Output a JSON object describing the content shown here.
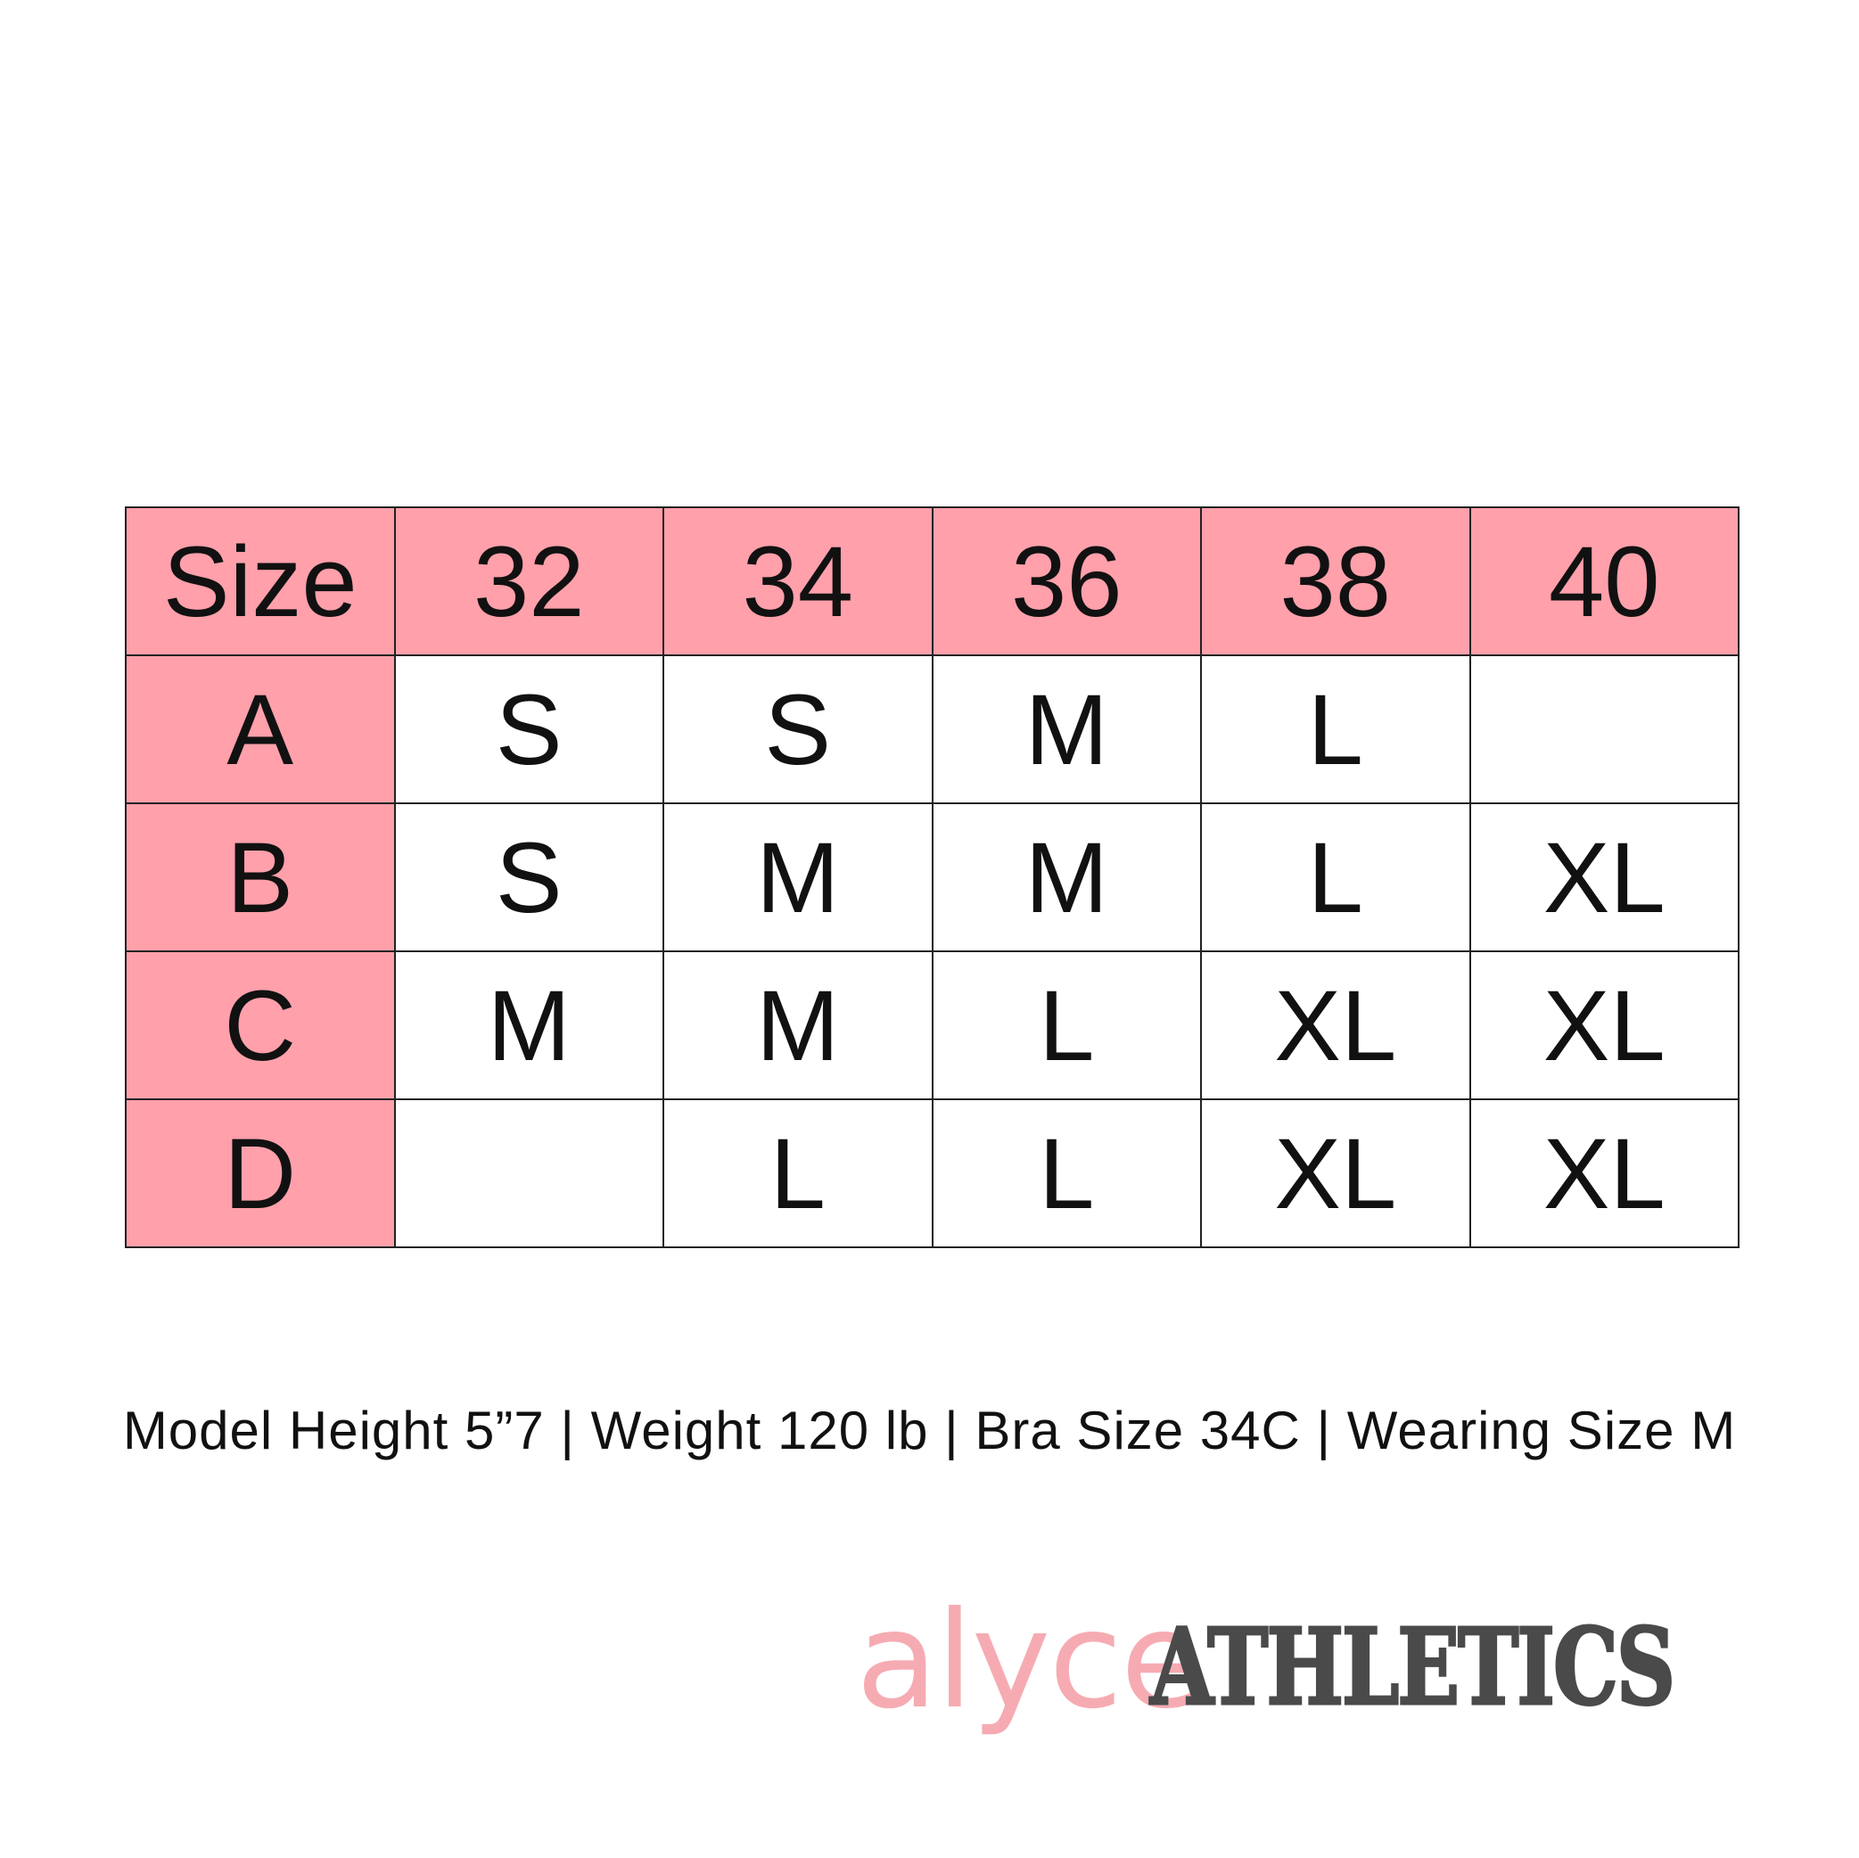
{
  "chart_data": {
    "type": "table",
    "header": [
      "Size",
      "32",
      "34",
      "36",
      "38",
      "40"
    ],
    "rows": [
      {
        "label": "A",
        "cells": [
          "S",
          "S",
          "M",
          "L",
          ""
        ]
      },
      {
        "label": "B",
        "cells": [
          "S",
          "M",
          "M",
          "L",
          "XL"
        ]
      },
      {
        "label": "C",
        "cells": [
          "M",
          "M",
          "L",
          "XL",
          "XL"
        ]
      },
      {
        "label": "D",
        "cells": [
          "",
          "L",
          "L",
          "XL",
          "XL"
        ]
      }
    ]
  },
  "colors": {
    "header_fill": "#ffa0ab",
    "logo_pink": "#f6a7ae",
    "logo_gray": "#4a4a4a"
  },
  "footer": {
    "text": "Model Height 5”7 | Weight 120 lb | Bra Size 34C | Wearing Size M"
  },
  "logo": {
    "part1": "alyce",
    "part2": "ATHLETICS"
  }
}
